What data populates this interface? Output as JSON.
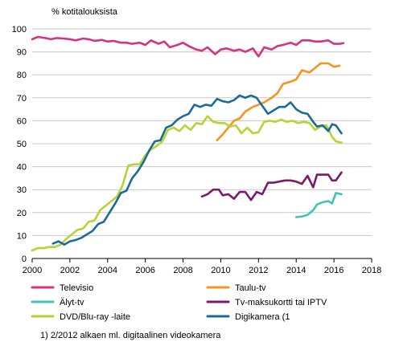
{
  "chart_data": {
    "type": "line",
    "ylabel": "% kotitalouksista",
    "xlabel": "",
    "xlim": [
      2000,
      2018
    ],
    "ylim": [
      0,
      100
    ],
    "x_ticks": [
      2000,
      2002,
      2004,
      2006,
      2008,
      2010,
      2012,
      2014,
      2016,
      2018
    ],
    "y_ticks": [
      0,
      10,
      20,
      30,
      40,
      50,
      60,
      70,
      80,
      90,
      100
    ],
    "grid": "horizontal",
    "legend_position": "bottom",
    "footnote": "1) 2/2012 alkaen ml. digitaalinen videokamera",
    "series": [
      {
        "name": "Televisio",
        "color": "#d6337f",
        "points": [
          [
            2000.0,
            95.5
          ],
          [
            2000.3,
            96.5
          ],
          [
            2000.7,
            96
          ],
          [
            2001.0,
            95.5
          ],
          [
            2001.3,
            96
          ],
          [
            2001.7,
            95.8
          ],
          [
            2002.0,
            95.5
          ],
          [
            2002.3,
            95
          ],
          [
            2002.7,
            95.8
          ],
          [
            2003.0,
            95.5
          ],
          [
            2003.3,
            94.8
          ],
          [
            2003.7,
            95.2
          ],
          [
            2004.0,
            94.5
          ],
          [
            2004.3,
            94.8
          ],
          [
            2004.7,
            94
          ],
          [
            2005.0,
            94
          ],
          [
            2005.3,
            93.5
          ],
          [
            2005.7,
            94
          ],
          [
            2006.0,
            93
          ],
          [
            2006.3,
            95
          ],
          [
            2006.7,
            93.5
          ],
          [
            2007.0,
            94.5
          ],
          [
            2007.3,
            92
          ],
          [
            2007.7,
            93
          ],
          [
            2008.0,
            94
          ],
          [
            2008.3,
            92.5
          ],
          [
            2008.7,
            91
          ],
          [
            2009.0,
            90.5
          ],
          [
            2009.3,
            92
          ],
          [
            2009.7,
            89
          ],
          [
            2010.0,
            91
          ],
          [
            2010.3,
            91.5
          ],
          [
            2010.7,
            90.5
          ],
          [
            2011.0,
            91
          ],
          [
            2011.3,
            90
          ],
          [
            2011.7,
            91.5
          ],
          [
            2012.0,
            88
          ],
          [
            2012.3,
            92
          ],
          [
            2012.7,
            91
          ],
          [
            2013.0,
            92.5
          ],
          [
            2013.3,
            93
          ],
          [
            2013.7,
            94
          ],
          [
            2014.0,
            93
          ],
          [
            2014.3,
            95
          ],
          [
            2014.7,
            95
          ],
          [
            2015.0,
            94.5
          ],
          [
            2015.3,
            94.5
          ],
          [
            2015.7,
            95
          ],
          [
            2016.0,
            93.5
          ],
          [
            2016.3,
            93.5
          ],
          [
            2016.5,
            93.8
          ]
        ]
      },
      {
        "name": "Taulu-tv",
        "color": "#f7941d",
        "points": [
          [
            2009.8,
            51.5
          ],
          [
            2010.1,
            54
          ],
          [
            2010.4,
            57
          ],
          [
            2010.7,
            60
          ],
          [
            2011.0,
            61
          ],
          [
            2011.3,
            64
          ],
          [
            2011.7,
            66
          ],
          [
            2012.0,
            67
          ],
          [
            2012.3,
            68
          ],
          [
            2012.7,
            70
          ],
          [
            2013.0,
            72
          ],
          [
            2013.3,
            76
          ],
          [
            2013.7,
            77
          ],
          [
            2014.0,
            78
          ],
          [
            2014.3,
            82
          ],
          [
            2014.7,
            81
          ],
          [
            2015.0,
            83
          ],
          [
            2015.3,
            85
          ],
          [
            2015.7,
            85
          ],
          [
            2016.0,
            83.5
          ],
          [
            2016.3,
            84
          ]
        ]
      },
      {
        "name": "Älyt-tv",
        "color": "#3fc4b5",
        "points": [
          [
            2014.0,
            18
          ],
          [
            2014.3,
            18.3
          ],
          [
            2014.6,
            19
          ],
          [
            2014.9,
            21
          ],
          [
            2015.1,
            23.5
          ],
          [
            2015.4,
            24.5
          ],
          [
            2015.7,
            25
          ],
          [
            2015.9,
            24
          ],
          [
            2016.1,
            28.5
          ],
          [
            2016.4,
            28
          ]
        ]
      },
      {
        "name": "Tv-maksukortti tai IPTV",
        "color": "#7a1a6b",
        "points": [
          [
            2009.0,
            27
          ],
          [
            2009.3,
            28
          ],
          [
            2009.6,
            30
          ],
          [
            2009.9,
            30
          ],
          [
            2010.1,
            27.5
          ],
          [
            2010.4,
            28
          ],
          [
            2010.7,
            26
          ],
          [
            2011.0,
            29
          ],
          [
            2011.3,
            29
          ],
          [
            2011.6,
            25.5
          ],
          [
            2011.9,
            29
          ],
          [
            2012.2,
            28
          ],
          [
            2012.5,
            33
          ],
          [
            2012.8,
            33
          ],
          [
            2013.1,
            33.5
          ],
          [
            2013.4,
            34
          ],
          [
            2013.7,
            34
          ],
          [
            2014.0,
            33.5
          ],
          [
            2014.3,
            32.5
          ],
          [
            2014.6,
            36
          ],
          [
            2014.9,
            31
          ],
          [
            2015.1,
            36.5
          ],
          [
            2015.4,
            36.5
          ],
          [
            2015.7,
            36.5
          ],
          [
            2015.9,
            34
          ],
          [
            2016.1,
            34
          ],
          [
            2016.4,
            37.5
          ]
        ]
      },
      {
        "name": "DVD/Blu-ray -laite",
        "color": "#b7d334",
        "points": [
          [
            2000.0,
            3.5
          ],
          [
            2000.3,
            4.5
          ],
          [
            2000.6,
            4.5
          ],
          [
            2000.9,
            5
          ],
          [
            2001.2,
            5
          ],
          [
            2001.5,
            6
          ],
          [
            2001.8,
            8.5
          ],
          [
            2002.1,
            10.5
          ],
          [
            2002.4,
            12.5
          ],
          [
            2002.7,
            13
          ],
          [
            2003.0,
            16
          ],
          [
            2003.3,
            16.5
          ],
          [
            2003.6,
            21
          ],
          [
            2003.9,
            23
          ],
          [
            2004.2,
            25
          ],
          [
            2004.5,
            27
          ],
          [
            2004.8,
            32
          ],
          [
            2005.1,
            40.5
          ],
          [
            2005.4,
            41
          ],
          [
            2005.7,
            41
          ],
          [
            2006.0,
            45
          ],
          [
            2006.3,
            47.5
          ],
          [
            2006.6,
            49
          ],
          [
            2006.9,
            51
          ],
          [
            2007.2,
            56
          ],
          [
            2007.5,
            57
          ],
          [
            2007.8,
            55.5
          ],
          [
            2008.1,
            58
          ],
          [
            2008.4,
            56
          ],
          [
            2008.7,
            59
          ],
          [
            2009.0,
            58.5
          ],
          [
            2009.3,
            62
          ],
          [
            2009.6,
            59.5
          ],
          [
            2009.9,
            59
          ],
          [
            2010.2,
            59
          ],
          [
            2010.5,
            57.5
          ],
          [
            2010.8,
            58
          ],
          [
            2011.1,
            54.5
          ],
          [
            2011.4,
            57
          ],
          [
            2011.7,
            54.5
          ],
          [
            2012.0,
            55
          ],
          [
            2012.3,
            59.5
          ],
          [
            2012.6,
            60
          ],
          [
            2012.9,
            59.5
          ],
          [
            2013.2,
            60.5
          ],
          [
            2013.5,
            59.5
          ],
          [
            2013.8,
            60
          ],
          [
            2014.1,
            59
          ],
          [
            2014.4,
            59.5
          ],
          [
            2014.7,
            59
          ],
          [
            2015.0,
            56
          ],
          [
            2015.3,
            57.5
          ],
          [
            2015.6,
            58
          ],
          [
            2015.9,
            53
          ],
          [
            2016.1,
            51
          ],
          [
            2016.4,
            50.5
          ]
        ]
      },
      {
        "name": "Digikamera (1",
        "color": "#1a6a9a",
        "points": [
          [
            2001.1,
            6.5
          ],
          [
            2001.4,
            7.5
          ],
          [
            2001.7,
            6
          ],
          [
            2002.0,
            7.5
          ],
          [
            2002.3,
            8
          ],
          [
            2002.6,
            9
          ],
          [
            2002.9,
            10.5
          ],
          [
            2003.2,
            12
          ],
          [
            2003.5,
            15
          ],
          [
            2003.8,
            16
          ],
          [
            2004.1,
            20
          ],
          [
            2004.4,
            24
          ],
          [
            2004.7,
            28.5
          ],
          [
            2005.0,
            29.5
          ],
          [
            2005.3,
            35
          ],
          [
            2005.6,
            38
          ],
          [
            2005.9,
            42
          ],
          [
            2006.2,
            47
          ],
          [
            2006.5,
            51
          ],
          [
            2006.8,
            51.5
          ],
          [
            2007.1,
            57
          ],
          [
            2007.4,
            58
          ],
          [
            2007.7,
            60.5
          ],
          [
            2008.0,
            62
          ],
          [
            2008.3,
            63
          ],
          [
            2008.6,
            67
          ],
          [
            2008.9,
            66
          ],
          [
            2009.2,
            67
          ],
          [
            2009.5,
            66.5
          ],
          [
            2009.8,
            69.5
          ],
          [
            2010.1,
            68.5
          ],
          [
            2010.4,
            68
          ],
          [
            2010.7,
            69
          ],
          [
            2011.0,
            71
          ],
          [
            2011.3,
            70
          ],
          [
            2011.6,
            71
          ],
          [
            2011.9,
            70
          ],
          [
            2012.2,
            66.5
          ],
          [
            2012.5,
            63
          ],
          [
            2012.8,
            64.5
          ],
          [
            2013.1,
            66
          ],
          [
            2013.4,
            66
          ],
          [
            2013.7,
            68
          ],
          [
            2014.0,
            65
          ],
          [
            2014.3,
            63.5
          ],
          [
            2014.6,
            63
          ],
          [
            2014.9,
            59.5
          ],
          [
            2015.1,
            57.5
          ],
          [
            2015.4,
            58
          ],
          [
            2015.7,
            55.5
          ],
          [
            2015.9,
            58.5
          ],
          [
            2016.1,
            58
          ],
          [
            2016.4,
            54.5
          ]
        ]
      }
    ]
  }
}
